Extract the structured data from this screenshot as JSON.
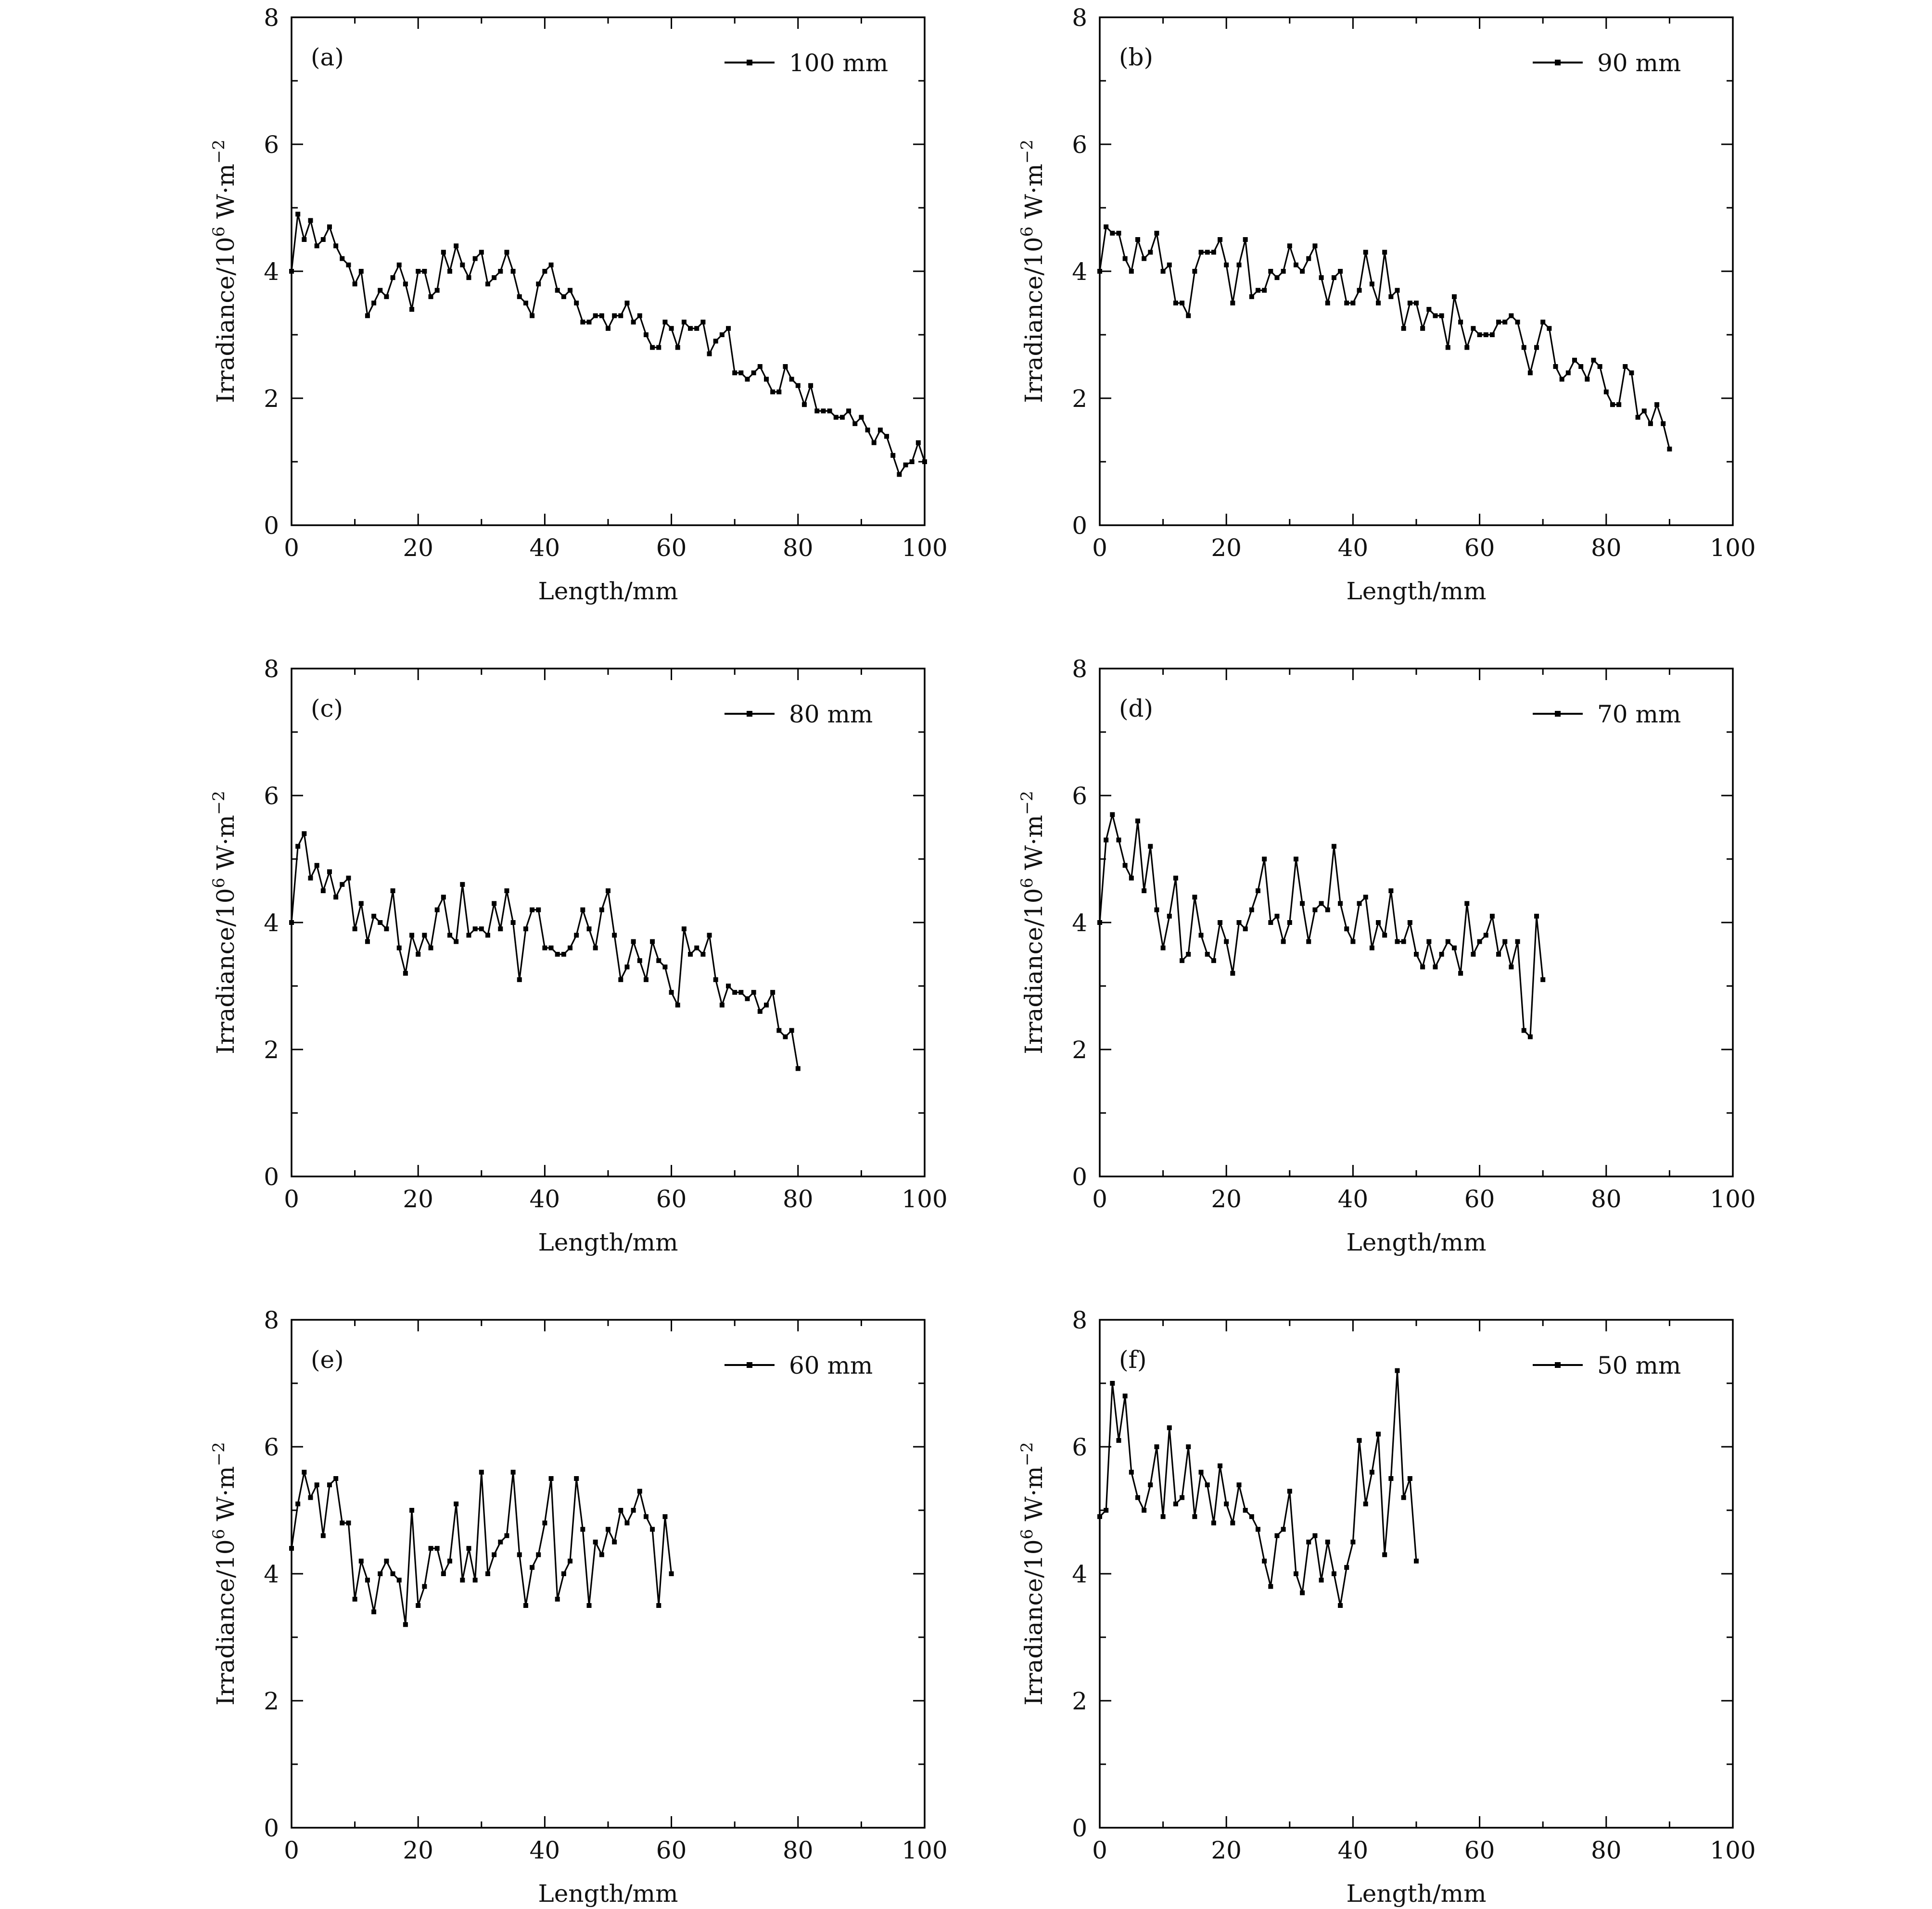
{
  "figure": {
    "ylabel_main": "Irradiance/10",
    "ylabel_exp": "6",
    "ylabel_unit": " W·m",
    "ylabel_unit_exp": "−2",
    "xlabel": "Length/mm",
    "line_color": "#000000"
  },
  "chart_data": [
    {
      "type": "line",
      "panel": "(a)",
      "legend": "100 mm",
      "xlim": [
        0,
        100
      ],
      "ylim": [
        0,
        8
      ],
      "xticks": [
        "0",
        "20",
        "40",
        "60",
        "80",
        "100"
      ],
      "yticks": [
        "0",
        "2",
        "4",
        "6",
        "8"
      ],
      "series": [
        {
          "name": "100 mm",
          "x": [
            0,
            1,
            2,
            3,
            4,
            5,
            6,
            7,
            8,
            9,
            10,
            11,
            12,
            13,
            14,
            15,
            16,
            17,
            18,
            19,
            20,
            21,
            22,
            23,
            24,
            25,
            26,
            27,
            28,
            29,
            30,
            31,
            32,
            33,
            34,
            35,
            36,
            37,
            38,
            39,
            40,
            41,
            42,
            43,
            44,
            45,
            46,
            47,
            48,
            49,
            50,
            51,
            52,
            53,
            54,
            55,
            56,
            57,
            58,
            59,
            60,
            61,
            62,
            63,
            64,
            65,
            66,
            67,
            68,
            69,
            70,
            71,
            72,
            73,
            74,
            75,
            76,
            77,
            78,
            79,
            80,
            81,
            82,
            83,
            84,
            85,
            86,
            87,
            88,
            89,
            90,
            91,
            92,
            93,
            94,
            95,
            96,
            97,
            98,
            99,
            100
          ],
          "y": [
            4.0,
            4.9,
            4.5,
            4.8,
            4.4,
            4.5,
            4.7,
            4.4,
            4.2,
            4.1,
            3.8,
            4.0,
            3.3,
            3.5,
            3.7,
            3.6,
            3.9,
            4.1,
            3.8,
            3.4,
            4.0,
            4.0,
            3.6,
            3.7,
            4.3,
            4.0,
            4.4,
            4.1,
            3.9,
            4.2,
            4.3,
            3.8,
            3.9,
            4.0,
            4.3,
            4.0,
            3.6,
            3.5,
            3.3,
            3.8,
            4.0,
            4.1,
            3.7,
            3.6,
            3.7,
            3.5,
            3.2,
            3.2,
            3.3,
            3.3,
            3.1,
            3.3,
            3.3,
            3.5,
            3.2,
            3.3,
            3.0,
            2.8,
            2.8,
            3.2,
            3.1,
            2.8,
            3.2,
            3.1,
            3.1,
            3.2,
            2.7,
            2.9,
            3.0,
            3.1,
            2.4,
            2.4,
            2.3,
            2.4,
            2.5,
            2.3,
            2.1,
            2.1,
            2.5,
            2.3,
            2.2,
            1.9,
            2.2,
            1.8,
            1.8,
            1.8,
            1.7,
            1.7,
            1.8,
            1.6,
            1.7,
            1.5,
            1.3,
            1.5,
            1.4,
            1.1,
            0.8,
            0.95,
            1.0,
            1.3,
            1.0
          ]
        }
      ]
    },
    {
      "type": "line",
      "panel": "(b)",
      "legend": "90 mm",
      "xlim": [
        0,
        100
      ],
      "ylim": [
        0,
        8
      ],
      "xticks": [
        "0",
        "20",
        "40",
        "60",
        "80",
        "100"
      ],
      "yticks": [
        "0",
        "2",
        "4",
        "6",
        "8"
      ],
      "series": [
        {
          "name": "90 mm",
          "x": [
            0,
            1,
            2,
            3,
            4,
            5,
            6,
            7,
            8,
            9,
            10,
            11,
            12,
            13,
            14,
            15,
            16,
            17,
            18,
            19,
            20,
            21,
            22,
            23,
            24,
            25,
            26,
            27,
            28,
            29,
            30,
            31,
            32,
            33,
            34,
            35,
            36,
            37,
            38,
            39,
            40,
            41,
            42,
            43,
            44,
            45,
            46,
            47,
            48,
            49,
            50,
            51,
            52,
            53,
            54,
            55,
            56,
            57,
            58,
            59,
            60,
            61,
            62,
            63,
            64,
            65,
            66,
            67,
            68,
            69,
            70,
            71,
            72,
            73,
            74,
            75,
            76,
            77,
            78,
            79,
            80,
            81,
            82,
            83,
            84,
            85,
            86,
            87,
            88,
            89,
            90
          ],
          "y": [
            4.0,
            4.7,
            4.6,
            4.6,
            4.2,
            4.0,
            4.5,
            4.2,
            4.3,
            4.6,
            4.0,
            4.1,
            3.5,
            3.5,
            3.3,
            4.0,
            4.3,
            4.3,
            4.3,
            4.5,
            4.1,
            3.5,
            4.1,
            4.5,
            3.6,
            3.7,
            3.7,
            4.0,
            3.9,
            4.0,
            4.4,
            4.1,
            4.0,
            4.2,
            4.4,
            3.9,
            3.5,
            3.9,
            4.0,
            3.5,
            3.5,
            3.7,
            4.3,
            3.8,
            3.5,
            4.3,
            3.6,
            3.7,
            3.1,
            3.5,
            3.5,
            3.1,
            3.4,
            3.3,
            3.3,
            2.8,
            3.6,
            3.2,
            2.8,
            3.1,
            3.0,
            3.0,
            3.0,
            3.2,
            3.2,
            3.3,
            3.2,
            2.8,
            2.4,
            2.8,
            3.2,
            3.1,
            2.5,
            2.3,
            2.4,
            2.6,
            2.5,
            2.3,
            2.6,
            2.5,
            2.1,
            1.9,
            1.9,
            2.5,
            2.4,
            1.7,
            1.8,
            1.6,
            1.9,
            1.6,
            1.2
          ]
        }
      ]
    },
    {
      "type": "line",
      "panel": "(c)",
      "legend": "80 mm",
      "xlim": [
        0,
        100
      ],
      "ylim": [
        0,
        8
      ],
      "xticks": [
        "0",
        "20",
        "40",
        "60",
        "80",
        "100"
      ],
      "yticks": [
        "0",
        "2",
        "4",
        "6",
        "8"
      ],
      "series": [
        {
          "name": "80 mm",
          "x": [
            0,
            1,
            2,
            3,
            4,
            5,
            6,
            7,
            8,
            9,
            10,
            11,
            12,
            13,
            14,
            15,
            16,
            17,
            18,
            19,
            20,
            21,
            22,
            23,
            24,
            25,
            26,
            27,
            28,
            29,
            30,
            31,
            32,
            33,
            34,
            35,
            36,
            37,
            38,
            39,
            40,
            41,
            42,
            43,
            44,
            45,
            46,
            47,
            48,
            49,
            50,
            51,
            52,
            53,
            54,
            55,
            56,
            57,
            58,
            59,
            60,
            61,
            62,
            63,
            64,
            65,
            66,
            67,
            68,
            69,
            70,
            71,
            72,
            73,
            74,
            75,
            76,
            77,
            78,
            79,
            80
          ],
          "y": [
            4.0,
            5.2,
            5.4,
            4.7,
            4.9,
            4.5,
            4.8,
            4.4,
            4.6,
            4.7,
            3.9,
            4.3,
            3.7,
            4.1,
            4.0,
            3.9,
            4.5,
            3.6,
            3.2,
            3.8,
            3.5,
            3.8,
            3.6,
            4.2,
            4.4,
            3.8,
            3.7,
            4.6,
            3.8,
            3.9,
            3.9,
            3.8,
            4.3,
            3.9,
            4.5,
            4.0,
            3.1,
            3.9,
            4.2,
            4.2,
            3.6,
            3.6,
            3.5,
            3.5,
            3.6,
            3.8,
            4.2,
            3.9,
            3.6,
            4.2,
            4.5,
            3.8,
            3.1,
            3.3,
            3.7,
            3.4,
            3.1,
            3.7,
            3.4,
            3.3,
            2.9,
            2.7,
            3.9,
            3.5,
            3.6,
            3.5,
            3.8,
            3.1,
            2.7,
            3.0,
            2.9,
            2.9,
            2.8,
            2.9,
            2.6,
            2.7,
            2.9,
            2.3,
            2.2,
            2.3,
            1.7
          ]
        }
      ]
    },
    {
      "type": "line",
      "panel": "(d)",
      "legend": "70 mm",
      "xlim": [
        0,
        100
      ],
      "ylim": [
        0,
        8
      ],
      "xticks": [
        "0",
        "20",
        "40",
        "60",
        "80",
        "100"
      ],
      "yticks": [
        "0",
        "2",
        "4",
        "6",
        "8"
      ],
      "series": [
        {
          "name": "70 mm",
          "x": [
            0,
            1,
            2,
            3,
            4,
            5,
            6,
            7,
            8,
            9,
            10,
            11,
            12,
            13,
            14,
            15,
            16,
            17,
            18,
            19,
            20,
            21,
            22,
            23,
            24,
            25,
            26,
            27,
            28,
            29,
            30,
            31,
            32,
            33,
            34,
            35,
            36,
            37,
            38,
            39,
            40,
            41,
            42,
            43,
            44,
            45,
            46,
            47,
            48,
            49,
            50,
            51,
            52,
            53,
            54,
            55,
            56,
            57,
            58,
            59,
            60,
            61,
            62,
            63,
            64,
            65,
            66,
            67,
            68,
            69,
            70
          ],
          "y": [
            4.0,
            5.3,
            5.7,
            5.3,
            4.9,
            4.7,
            5.6,
            4.5,
            5.2,
            4.2,
            3.6,
            4.1,
            4.7,
            3.4,
            3.5,
            4.4,
            3.8,
            3.5,
            3.4,
            4.0,
            3.7,
            3.2,
            4.0,
            3.9,
            4.2,
            4.5,
            5.0,
            4.0,
            4.1,
            3.7,
            4.0,
            5.0,
            4.3,
            3.7,
            4.2,
            4.3,
            4.2,
            5.2,
            4.3,
            3.9,
            3.7,
            4.3,
            4.4,
            3.6,
            4.0,
            3.8,
            4.5,
            3.7,
            3.7,
            4.0,
            3.5,
            3.3,
            3.7,
            3.3,
            3.5,
            3.7,
            3.6,
            3.2,
            4.3,
            3.5,
            3.7,
            3.8,
            4.1,
            3.5,
            3.7,
            3.3,
            3.7,
            2.3,
            2.2,
            4.1,
            3.1
          ]
        }
      ]
    },
    {
      "type": "line",
      "panel": "(e)",
      "legend": "60 mm",
      "xlim": [
        0,
        100
      ],
      "ylim": [
        0,
        8
      ],
      "xticks": [
        "0",
        "20",
        "40",
        "60",
        "80",
        "100"
      ],
      "yticks": [
        "0",
        "2",
        "4",
        "6",
        "8"
      ],
      "series": [
        {
          "name": "60 mm",
          "x": [
            0,
            1,
            2,
            3,
            4,
            5,
            6,
            7,
            8,
            9,
            10,
            11,
            12,
            13,
            14,
            15,
            16,
            17,
            18,
            19,
            20,
            21,
            22,
            23,
            24,
            25,
            26,
            27,
            28,
            29,
            30,
            31,
            32,
            33,
            34,
            35,
            36,
            37,
            38,
            39,
            40,
            41,
            42,
            43,
            44,
            45,
            46,
            47,
            48,
            49,
            50,
            51,
            52,
            53,
            54,
            55,
            56,
            57,
            58,
            59,
            60
          ],
          "y": [
            4.4,
            5.1,
            5.6,
            5.2,
            5.4,
            4.6,
            5.4,
            5.5,
            4.8,
            4.8,
            3.6,
            4.2,
            3.9,
            3.4,
            4.0,
            4.2,
            4.0,
            3.9,
            3.2,
            5.0,
            3.5,
            3.8,
            4.4,
            4.4,
            4.0,
            4.2,
            5.1,
            3.9,
            4.4,
            3.9,
            5.6,
            4.0,
            4.3,
            4.5,
            4.6,
            5.6,
            4.3,
            3.5,
            4.1,
            4.3,
            4.8,
            5.5,
            3.6,
            4.0,
            4.2,
            5.5,
            4.7,
            3.5,
            4.5,
            4.3,
            4.7,
            4.5,
            5.0,
            4.8,
            5.0,
            5.3,
            4.9,
            4.7,
            3.5,
            4.9,
            4.0
          ]
        }
      ]
    },
    {
      "type": "line",
      "panel": "(f)",
      "legend": "50 mm",
      "xlim": [
        0,
        100
      ],
      "ylim": [
        0,
        8
      ],
      "xticks": [
        "0",
        "20",
        "40",
        "60",
        "80",
        "100"
      ],
      "yticks": [
        "0",
        "2",
        "4",
        "6",
        "8"
      ],
      "series": [
        {
          "name": "50 mm",
          "x": [
            0,
            1,
            2,
            3,
            4,
            5,
            6,
            7,
            8,
            9,
            10,
            11,
            12,
            13,
            14,
            15,
            16,
            17,
            18,
            19,
            20,
            21,
            22,
            23,
            24,
            25,
            26,
            27,
            28,
            29,
            30,
            31,
            32,
            33,
            34,
            35,
            36,
            37,
            38,
            39,
            40,
            41,
            42,
            43,
            44,
            45,
            46,
            47,
            48,
            49,
            50
          ],
          "y": [
            4.9,
            5.0,
            7.0,
            6.1,
            6.8,
            5.6,
            5.2,
            5.0,
            5.4,
            6.0,
            4.9,
            6.3,
            5.1,
            5.2,
            6.0,
            4.9,
            5.6,
            5.4,
            4.8,
            5.7,
            5.1,
            4.8,
            5.4,
            5.0,
            4.9,
            4.7,
            4.2,
            3.8,
            4.6,
            4.7,
            5.3,
            4.0,
            3.7,
            4.5,
            4.6,
            3.9,
            4.5,
            4.0,
            3.5,
            4.1,
            4.5,
            6.1,
            5.1,
            5.6,
            6.2,
            4.3,
            5.5,
            7.2,
            5.2,
            5.5,
            4.2
          ]
        }
      ]
    }
  ]
}
